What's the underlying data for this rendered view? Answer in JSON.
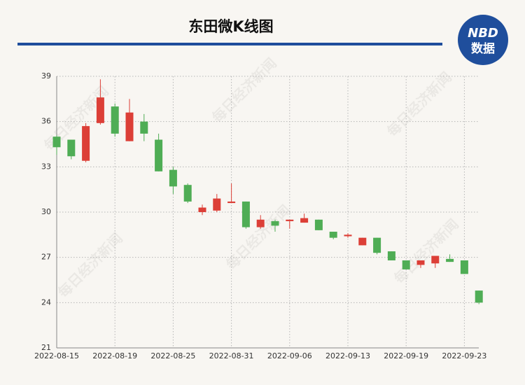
{
  "chart_data": {
    "type": "candlestick",
    "title": "东田微K线图",
    "logo": {
      "top": "NBD",
      "bottom": "数据"
    },
    "watermark": "每日经济新闻",
    "categories": [
      "2022-08-15",
      null,
      null,
      null,
      "2022-08-19",
      null,
      null,
      null,
      "2022-08-25",
      null,
      null,
      null,
      "2022-08-31",
      null,
      null,
      null,
      "2022-09-06",
      null,
      null,
      null,
      "2022-09-13",
      null,
      null,
      null,
      "2022-09-19",
      null,
      null,
      null,
      "2022-09-23",
      null
    ],
    "open": [
      35.0,
      34.8,
      33.4,
      35.9,
      37.0,
      34.7,
      36.0,
      34.8,
      32.8,
      31.8,
      30.0,
      30.1,
      30.6,
      30.7,
      29.0,
      29.4,
      29.4,
      29.3,
      29.5,
      28.7,
      28.4,
      27.8,
      28.3,
      27.4,
      26.8,
      26.5,
      26.6,
      26.9,
      26.8,
      24.8
    ],
    "close": [
      34.3,
      33.7,
      35.7,
      37.6,
      35.2,
      36.6,
      35.2,
      32.7,
      31.7,
      30.7,
      30.3,
      30.9,
      30.7,
      29.0,
      29.5,
      29.1,
      29.5,
      29.6,
      28.8,
      28.3,
      28.5,
      28.3,
      27.3,
      26.8,
      26.2,
      26.8,
      27.1,
      26.7,
      25.9,
      24.0
    ],
    "high": [
      35.1,
      34.8,
      35.9,
      38.8,
      37.2,
      37.5,
      36.5,
      35.2,
      33.0,
      31.9,
      30.5,
      31.2,
      31.9,
      30.7,
      29.8,
      29.5,
      29.5,
      29.9,
      29.5,
      28.7,
      28.6,
      28.3,
      28.3,
      27.4,
      26.8,
      26.8,
      27.1,
      27.2,
      26.8,
      24.8
    ],
    "low": [
      33.8,
      33.5,
      33.3,
      35.8,
      35.0,
      34.7,
      34.7,
      32.7,
      31.2,
      30.6,
      29.8,
      30.0,
      30.6,
      28.9,
      28.9,
      28.7,
      28.9,
      29.3,
      28.8,
      28.2,
      28.3,
      27.8,
      27.2,
      26.8,
      26.2,
      26.3,
      26.3,
      26.7,
      25.9,
      23.9
    ],
    "up_color": "#dc3f37",
    "down_color": "#4fad55",
    "ylim": [
      21,
      39
    ],
    "yticks": [
      21,
      24,
      27,
      30,
      33,
      36,
      39
    ],
    "grid": true
  }
}
